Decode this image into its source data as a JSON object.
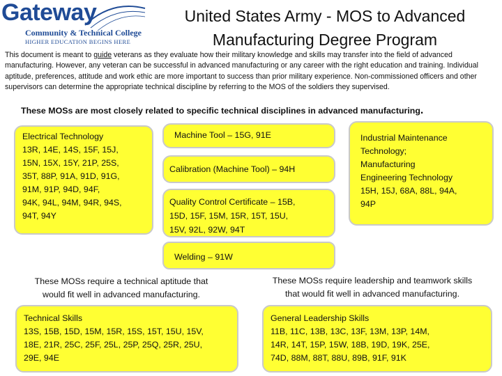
{
  "logo": {
    "brand": "Gateway",
    "college": "Community & Technical College",
    "tagline": "HIGHER EDUCATION BEGINS HERE"
  },
  "header": {
    "title_line1": "United States Army - MOS to Advanced",
    "title_line2": "Manufacturing Degree Program"
  },
  "intro": {
    "lead": "This document is meant to ",
    "guide": "guide",
    "rest": " veterans as they evaluate how their military knowledge and skills may transfer into the field of advanced manufacturing.  However, any veteran can be successful in advanced manufacturing or any career with the right education and training.  Individual aptitude, preferences, attitude and work ethic are more important to success than prior military experience.  Non-commissioned officers and other supervisors can determine the appropriate technical discipline by referring to the MOS of the soldiers they supervised."
  },
  "section_heading": "These MOSs are most closely related to specific technical disciplines in advanced manufacturing",
  "section_heading_dot": ".",
  "boxes": {
    "electrical": {
      "line1": "Electrical Technology",
      "line2": "13R, 14E, 14S, 15F, 15J,",
      "line3": "15N, 15X, 15Y, 21P, 25S,",
      "line4": "35T, 88P, 91A, 91D, 91G,",
      "line5": "91M, 91P, 94D, 94F,",
      "line6": "94K, 94L, 94M, 94R, 94S,",
      "line7": "94T, 94Y"
    },
    "machine_tool": "Machine Tool – 15G, 91E",
    "calibration": "Calibration (Machine Tool)  – 94H",
    "quality_control": {
      "line1": "Quality Control Certificate – 15B,",
      "line2": "15D, 15F, 15M, 15R, 15T, 15U,",
      "line3": "15V, 92L, 92W, 94T"
    },
    "industrial": {
      "line1": "Industrial Maintenance",
      "line2": "Technology;",
      "line3": "Manufacturing",
      "line4": "Engineering Technology",
      "line5": "15H, 15J, 68A, 88L, 94A,",
      "line6": "94P"
    },
    "welding": "Welding – 91W",
    "technical": {
      "heading": "Technical Skills",
      "line1": "13S, 15B, 15D, 15M, 15R, 15S, 15T, 15U, 15V,",
      "line2": "18E, 21R, 25C, 25F, 25L, 25P, 25Q, 25R, 25U,",
      "line3": "29E, 94E"
    },
    "leadership": {
      "heading": "General Leadership Skills",
      "line1": "11B, 11C, 13B, 13C, 13F, 13M, 13P, 14M,",
      "line2": "14R, 14T, 15P, 15W, 18B, 19D, 19K, 25E,",
      "line3": "74D, 88M, 88T, 88U, 89B, 91F, 91K"
    }
  },
  "captions": {
    "technical_line1": "These MOSs require a technical aptitude that",
    "technical_line2": "would fit well in advanced manufacturing.",
    "leadership_line1": "These MOSs require leadership and teamwork skills",
    "leadership_line2": "that would fit well in advanced manufacturing."
  },
  "colors": {
    "box_fill": "#ffff33",
    "box_border": "#c9c9c9",
    "logo_blue": "#1f4b96"
  }
}
